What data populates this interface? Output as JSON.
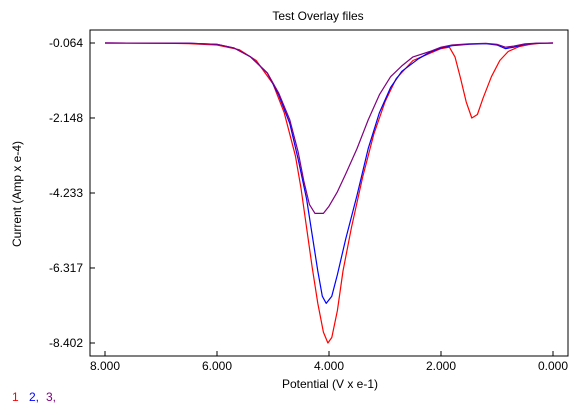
{
  "chart_data": {
    "type": "line",
    "title": "Test Overlay files",
    "xlabel": "Potential (V x e-1)",
    "ylabel": "Current (Amp x e-4)",
    "x_reversed": true,
    "xlim": [
      8.0,
      0.0
    ],
    "ylim": [
      -8.402,
      -0.064
    ],
    "x_ticks": [
      8.0,
      6.0,
      4.0,
      2.0,
      0.0
    ],
    "x_tick_labels": [
      "8.000",
      "6.000",
      "4.000",
      "2.000",
      "0.000"
    ],
    "y_ticks": [
      -0.064,
      -2.148,
      -4.233,
      -6.317,
      -8.402
    ],
    "y_tick_labels": [
      "-0.064",
      "-2.148",
      "-4.233",
      "-6.317",
      "-8.402"
    ],
    "grid": false,
    "legend": {
      "placement": "bottom-left",
      "entries": [
        {
          "text": "1",
          "color": "#ff0000"
        },
        {
          "text": "2,",
          "color": "#0000ff"
        },
        {
          "text": "3,",
          "color": "#800080"
        }
      ]
    },
    "series": [
      {
        "color": "#ff0000",
        "points": [
          [
            8.0,
            -0.064
          ],
          [
            7.0,
            -0.07
          ],
          [
            6.5,
            -0.08
          ],
          [
            6.0,
            -0.12
          ],
          [
            5.6,
            -0.25
          ],
          [
            5.3,
            -0.55
          ],
          [
            5.0,
            -1.2
          ],
          [
            4.8,
            -2.0
          ],
          [
            4.6,
            -3.2
          ],
          [
            4.5,
            -4.1
          ],
          [
            4.4,
            -5.2
          ],
          [
            4.3,
            -6.3
          ],
          [
            4.2,
            -7.3
          ],
          [
            4.1,
            -8.1
          ],
          [
            4.02,
            -8.402
          ],
          [
            3.95,
            -8.25
          ],
          [
            3.85,
            -7.5
          ],
          [
            3.75,
            -6.4
          ],
          [
            3.6,
            -5.2
          ],
          [
            3.4,
            -3.8
          ],
          [
            3.2,
            -2.6
          ],
          [
            3.0,
            -1.7
          ],
          [
            2.8,
            -1.05
          ],
          [
            2.5,
            -0.55
          ],
          [
            2.2,
            -0.35
          ],
          [
            2.0,
            -0.22
          ],
          [
            1.85,
            -0.18
          ],
          [
            1.75,
            -0.45
          ],
          [
            1.65,
            -1.05
          ],
          [
            1.55,
            -1.7
          ],
          [
            1.45,
            -2.148
          ],
          [
            1.35,
            -2.05
          ],
          [
            1.25,
            -1.6
          ],
          [
            1.1,
            -1.0
          ],
          [
            0.95,
            -0.55
          ],
          [
            0.8,
            -0.3
          ],
          [
            0.6,
            -0.16
          ],
          [
            0.4,
            -0.1
          ],
          [
            0.2,
            -0.07
          ],
          [
            0.0,
            -0.064
          ]
        ]
      },
      {
        "color": "#0000ff",
        "points": [
          [
            8.0,
            -0.064
          ],
          [
            7.0,
            -0.066
          ],
          [
            6.5,
            -0.07
          ],
          [
            6.0,
            -0.1
          ],
          [
            5.7,
            -0.2
          ],
          [
            5.4,
            -0.45
          ],
          [
            5.1,
            -0.9
          ],
          [
            4.9,
            -1.5
          ],
          [
            4.7,
            -2.3
          ],
          [
            4.55,
            -3.3
          ],
          [
            4.4,
            -4.4
          ],
          [
            4.3,
            -5.4
          ],
          [
            4.2,
            -6.4
          ],
          [
            4.12,
            -7.1
          ],
          [
            4.05,
            -7.3
          ],
          [
            3.95,
            -7.1
          ],
          [
            3.85,
            -6.5
          ],
          [
            3.7,
            -5.5
          ],
          [
            3.5,
            -4.3
          ],
          [
            3.3,
            -3.0
          ],
          [
            3.1,
            -2.0
          ],
          [
            2.9,
            -1.3
          ],
          [
            2.7,
            -0.85
          ],
          [
            2.4,
            -0.5
          ],
          [
            2.2,
            -0.32
          ],
          [
            2.0,
            -0.2
          ],
          [
            1.8,
            -0.14
          ],
          [
            1.5,
            -0.1
          ],
          [
            1.2,
            -0.08
          ],
          [
            1.0,
            -0.12
          ],
          [
            0.85,
            -0.22
          ],
          [
            0.7,
            -0.18
          ],
          [
            0.5,
            -0.1
          ],
          [
            0.3,
            -0.075
          ],
          [
            0.0,
            -0.064
          ]
        ]
      },
      {
        "color": "#800080",
        "points": [
          [
            8.0,
            -0.064
          ],
          [
            7.0,
            -0.066
          ],
          [
            6.5,
            -0.07
          ],
          [
            6.0,
            -0.1
          ],
          [
            5.7,
            -0.2
          ],
          [
            5.4,
            -0.45
          ],
          [
            5.1,
            -0.9
          ],
          [
            4.9,
            -1.45
          ],
          [
            4.7,
            -2.2
          ],
          [
            4.55,
            -3.1
          ],
          [
            4.45,
            -3.9
          ],
          [
            4.35,
            -4.55
          ],
          [
            4.25,
            -4.8
          ],
          [
            4.1,
            -4.8
          ],
          [
            4.0,
            -4.6
          ],
          [
            3.85,
            -4.2
          ],
          [
            3.7,
            -3.7
          ],
          [
            3.5,
            -3.0
          ],
          [
            3.3,
            -2.2
          ],
          [
            3.1,
            -1.5
          ],
          [
            2.9,
            -1.0
          ],
          [
            2.7,
            -0.7
          ],
          [
            2.5,
            -0.45
          ],
          [
            2.2,
            -0.3
          ],
          [
            2.0,
            -0.18
          ],
          [
            1.8,
            -0.12
          ],
          [
            1.5,
            -0.09
          ],
          [
            1.2,
            -0.075
          ],
          [
            1.0,
            -0.1
          ],
          [
            0.85,
            -0.18
          ],
          [
            0.7,
            -0.15
          ],
          [
            0.5,
            -0.09
          ],
          [
            0.3,
            -0.07
          ],
          [
            0.0,
            -0.064
          ]
        ]
      }
    ]
  }
}
